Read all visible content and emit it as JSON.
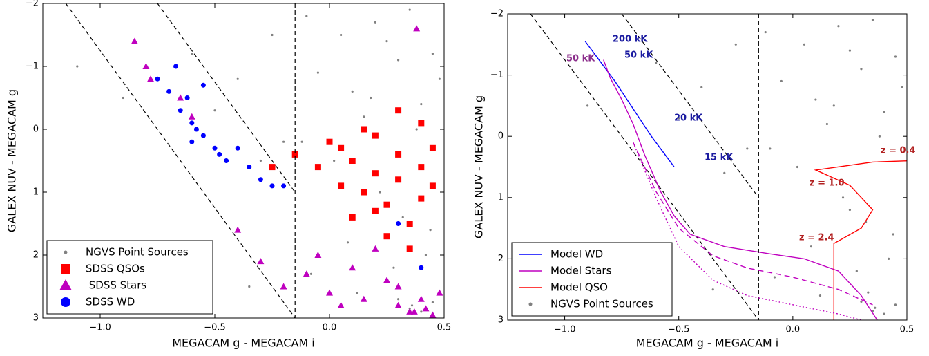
{
  "chart_data": [
    {
      "type": "scatter",
      "xlabel": "MEGACAM g - MEGACAM i",
      "ylabel": "GALEX NUV - MEGACAM g",
      "xlim": [
        -1.25,
        0.5
      ],
      "ylim": [
        3,
        -2
      ],
      "xticks": [
        {
          "value": -1.0,
          "label": "−1.0"
        },
        {
          "value": -0.5,
          "label": "−0.5"
        },
        {
          "value": 0.0,
          "label": "0.0"
        },
        0.5
      ],
      "yticks": [
        {
          "value": -2,
          "label": "−2"
        },
        {
          "value": -1,
          "label": "−1"
        },
        0,
        1,
        2,
        3
      ],
      "vline": -0.15,
      "reference_lines": [
        {
          "x": [
            -1.15,
            -0.15
          ],
          "values": [
            -2,
            3
          ]
        },
        {
          "x": [
            -0.75,
            -0.15
          ],
          "values": [
            -2,
            1
          ]
        }
      ],
      "legend": "lower left",
      "series": [
        {
          "name": "NGVS Point Sources",
          "kind": "scatter",
          "marker": "o",
          "color": "#808080",
          "x": [
            -0.1,
            0.05,
            0.2,
            0.35,
            0.45,
            -0.05,
            0.1,
            0.3,
            0.4,
            0.15,
            0.25,
            0.48,
            -0.12,
            0.02,
            0.38,
            0.22,
            0.32,
            0.08,
            -0.08,
            0.44,
            0.12,
            0.28,
            0.42,
            0.18,
            0.36,
            -0.3,
            -0.5,
            -0.6,
            -0.4,
            -0.2,
            -0.9,
            -1.1,
            -0.35,
            -0.25,
            -0.7,
            0.3,
            0.4,
            0.35,
            0.45,
            0.25
          ],
          "values": [
            -1.8,
            -1.5,
            -1.7,
            -1.9,
            -1.2,
            -0.9,
            -0.6,
            -1.1,
            -0.4,
            -0.2,
            -1.4,
            -0.8,
            0.2,
            0.5,
            0.0,
            1.0,
            1.4,
            1.8,
            2.3,
            1.6,
            2.6,
            2.2,
            2.0,
            -0.5,
            2.8,
            0.5,
            -0.3,
            -1.2,
            -0.8,
            0.2,
            -0.5,
            -1.0,
            2.5,
            -1.5,
            2.4,
            2.7,
            2.9,
            2.85,
            2.75,
            1.2
          ]
        },
        {
          "name": "SDSS QSOs",
          "kind": "scatter",
          "marker": "s",
          "color": "#ff0000",
          "x": [
            0.05,
            0.1,
            0.2,
            0.3,
            0.4,
            0.45,
            0.15,
            0.25,
            0.35,
            0.0,
            -0.05,
            0.2,
            0.3,
            0.4,
            0.1,
            0.25,
            0.35,
            0.45,
            0.15,
            0.3,
            -0.15,
            -0.25,
            0.05,
            0.4,
            0.2
          ],
          "values": [
            0.3,
            0.5,
            0.7,
            0.4,
            0.6,
            0.9,
            1.0,
            1.2,
            1.5,
            0.2,
            0.6,
            0.1,
            0.8,
            1.1,
            1.4,
            1.7,
            1.9,
            0.3,
            0.0,
            -0.3,
            0.4,
            0.6,
            0.9,
            -0.1,
            1.3
          ]
        },
        {
          "name": " SDSS Stars",
          "kind": "scatter",
          "marker": "^",
          "color": "#bf00bf",
          "x": [
            -0.85,
            -0.8,
            -0.78,
            -0.65,
            -0.6,
            -0.4,
            -0.3,
            -0.2,
            -0.1,
            0.0,
            0.1,
            0.2,
            0.3,
            0.35,
            0.4,
            0.45,
            0.3,
            0.25,
            0.38,
            0.42,
            0.15,
            -0.05,
            0.05,
            0.37,
            0.48
          ],
          "values": [
            -1.4,
            -1.0,
            -0.8,
            -0.5,
            -0.2,
            1.6,
            2.1,
            2.5,
            2.3,
            2.6,
            2.2,
            1.9,
            2.8,
            2.9,
            2.7,
            2.95,
            2.5,
            2.4,
            -1.6,
            2.85,
            2.7,
            2.0,
            2.8,
            2.9,
            2.6
          ]
        },
        {
          "name": "SDSS WD",
          "kind": "scatter",
          "marker": "o",
          "color": "#0000ff",
          "x": [
            -0.75,
            -0.7,
            -0.65,
            -0.6,
            -0.58,
            -0.55,
            -0.62,
            -0.5,
            -0.45,
            -0.4,
            -0.35,
            -0.3,
            -0.25,
            -0.2,
            -0.55,
            -0.67,
            -0.6,
            0.3,
            0.4,
            -0.48
          ],
          "values": [
            -0.8,
            -0.6,
            -0.3,
            -0.1,
            0.0,
            0.1,
            -0.5,
            0.3,
            0.5,
            0.3,
            0.6,
            0.8,
            0.9,
            0.9,
            -0.7,
            -1.0,
            0.2,
            1.5,
            2.2,
            0.4
          ]
        }
      ]
    },
    {
      "type": "scatter",
      "xlabel": "MEGACAM g - MEGACAM i",
      "ylabel": "GALEX NUV - MEGACAM g",
      "xlim": [
        -1.25,
        0.5
      ],
      "ylim": [
        3,
        -2
      ],
      "xticks": [
        {
          "value": -1.0,
          "label": "−1.0"
        },
        {
          "value": -0.5,
          "label": "−0.5"
        },
        {
          "value": 0.0,
          "label": "0.0"
        },
        0.5
      ],
      "yticks": [
        {
          "value": -2,
          "label": "−2"
        },
        {
          "value": -1,
          "label": "−1"
        },
        0,
        1,
        2,
        3
      ],
      "vline": -0.15,
      "reference_lines": [
        {
          "x": [
            -1.15,
            -0.15
          ],
          "values": [
            -2,
            3
          ]
        },
        {
          "x": [
            -0.75,
            -0.15
          ],
          "values": [
            -2,
            1
          ]
        }
      ],
      "legend": "lower left",
      "annotations": [
        "200 kK",
        "50 kK",
        "20 kK",
        "15 kK",
        "50 kK",
        "z = 0.4",
        "z = 1.0",
        "z = 2.4"
      ],
      "series": [
        {
          "name": "Model WD",
          "kind": "line",
          "style": "solid",
          "color": "#0000ff",
          "x": [
            -0.91,
            -0.85,
            -0.78,
            -0.7,
            -0.62,
            -0.56,
            -0.52
          ],
          "values": [
            -1.55,
            -1.25,
            -0.9,
            -0.45,
            0.0,
            0.3,
            0.5
          ]
        },
        {
          "name": "Model Stars",
          "kind": "line",
          "style": "solid",
          "color": "#bf00bf",
          "x": [
            -0.83,
            -0.8,
            -0.75,
            -0.7,
            -0.65,
            -0.58,
            -0.52,
            -0.45,
            -0.3,
            -0.1,
            0.05,
            0.2,
            0.3,
            0.37
          ],
          "values": [
            -1.25,
            -0.95,
            -0.6,
            -0.2,
            0.3,
            0.9,
            1.3,
            1.6,
            1.8,
            1.92,
            2.0,
            2.2,
            2.6,
            3.0
          ]
        },
        {
          "name": "Model QSO",
          "kind": "line",
          "style": "solid",
          "color": "#ff0000",
          "x": [
            0.5,
            0.35,
            0.1,
            0.25,
            0.35,
            0.3,
            0.18,
            0.18
          ],
          "values": [
            0.4,
            0.42,
            0.55,
            0.8,
            1.2,
            1.5,
            1.75,
            3.0
          ]
        },
        {
          "name": "NGVS Point Sources",
          "kind": "scatter",
          "marker": "o",
          "color": "#808080",
          "x": [
            -0.12,
            0.05,
            0.2,
            0.35,
            0.45,
            -0.05,
            0.1,
            0.3,
            0.4,
            0.15,
            0.25,
            0.48,
            -0.1,
            0.02,
            0.38,
            0.22,
            0.32,
            0.08,
            -0.08,
            0.44,
            0.12,
            0.28,
            0.42,
            0.18,
            0.36,
            -0.3,
            -0.5,
            -0.6,
            -0.4,
            -0.2,
            -0.9,
            -0.35,
            -0.25,
            -0.7,
            0.3,
            0.4,
            0.35,
            0.45,
            0.25,
            0.33
          ],
          "values": [
            -1.7,
            -1.5,
            -1.8,
            -1.9,
            -1.3,
            -0.9,
            -0.6,
            -1.1,
            -0.4,
            -0.2,
            -1.4,
            -0.8,
            0.2,
            0.5,
            0.0,
            1.0,
            1.4,
            1.8,
            2.3,
            1.6,
            2.6,
            2.2,
            2.0,
            -0.5,
            2.8,
            0.6,
            -0.3,
            -1.2,
            -0.8,
            0.2,
            -0.5,
            2.5,
            -1.5,
            2.4,
            2.7,
            2.9,
            2.85,
            2.75,
            1.2,
            2.55
          ]
        },
        {
          "kind": "line",
          "style": "dashed",
          "color": "#bf00bf",
          "x": [
            -0.7,
            -0.6,
            -0.5,
            -0.35,
            -0.2,
            0.0,
            0.2,
            0.35
          ],
          "values": [
            0.1,
            0.9,
            1.5,
            1.95,
            2.15,
            2.3,
            2.5,
            2.75
          ]
        },
        {
          "kind": "line",
          "style": "dotted",
          "color": "#bf00bf",
          "x": [
            -0.7,
            -0.6,
            -0.5,
            -0.35,
            -0.2,
            0.0,
            0.2,
            0.3
          ],
          "values": [
            0.1,
            1.0,
            1.8,
            2.35,
            2.6,
            2.75,
            2.9,
            3.0
          ]
        }
      ]
    }
  ]
}
